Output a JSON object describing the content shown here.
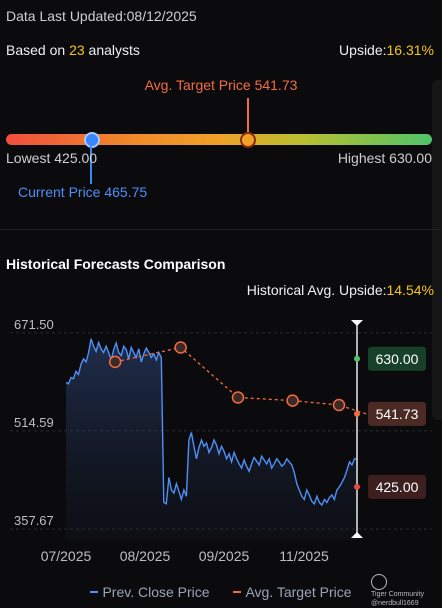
{
  "header": {
    "updated_label": "Data Last Updated:",
    "updated_date": "08/12/2025",
    "based_on_prefix": "Based on",
    "analyst_count": "23",
    "based_on_suffix": "analysts",
    "upside_label": "Upside:",
    "upside_value": "16.31%"
  },
  "price_range": {
    "avg_target_label": "Avg. Target Price 541.73",
    "lowest_label": "Lowest 425.00",
    "highest_label": "Highest 630.00",
    "current_label": "Current Price 465.75",
    "lowest": 425.0,
    "highest": 630.0,
    "current": 465.75,
    "avg_target": 541.73,
    "colors": {
      "current": "#3a86ff",
      "target": "#f26b43"
    }
  },
  "historical": {
    "title": "Historical Forecasts Comparison",
    "upside_label": "Historical Avg. Upside:",
    "upside_value": "14.54%"
  },
  "chart_data": {
    "type": "line",
    "y_ticks": [
      "671.50",
      "514.59",
      "357.67"
    ],
    "ylim": [
      340,
      700
    ],
    "x_ticks": [
      "07/2025",
      "08/2025",
      "09/2025",
      "11/2025"
    ],
    "series": [
      {
        "name": "Prev. Close Price",
        "color": "#4f8ff7",
        "values": [
          592,
          590,
          600,
          598,
          610,
          605,
          622,
          630,
          625,
          640,
          662,
          650,
          642,
          656,
          646,
          640,
          650,
          640,
          628,
          645,
          655,
          640,
          635,
          650,
          645,
          630,
          648,
          640,
          632,
          646,
          625,
          638,
          647,
          640,
          632,
          638,
          628,
          640,
          632,
          400,
          398,
          440,
          420,
          415,
          430,
          418,
          405,
          420,
          410,
          500,
          512,
          490,
          470,
          488,
          500,
          490,
          495,
          480,
          488,
          500,
          492,
          478,
          490,
          482,
          470,
          478,
          465,
          480,
          470,
          462,
          455,
          468,
          458,
          450,
          462,
          472,
          466,
          460,
          474,
          468,
          462,
          470,
          455,
          462,
          470,
          465,
          458,
          462,
          470,
          465,
          460,
          448,
          430,
          420,
          410,
          405,
          420,
          412,
          402,
          398,
          410,
          400,
          396,
          405,
          400,
          408,
          412,
          405,
          420,
          425,
          432,
          440,
          452,
          465,
          460,
          470,
          470
        ]
      },
      {
        "name": "Avg. Target Price",
        "color": "#f26b43",
        "points": [
          [
            0.18,
            625
          ],
          [
            0.42,
            648
          ],
          [
            0.63,
            568
          ],
          [
            0.83,
            563
          ],
          [
            1.0,
            556
          ],
          [
            1.1,
            541.73
          ]
        ]
      }
    ],
    "annotations": [
      {
        "label": "630.00",
        "value": 630.0,
        "color": "#4fc36a"
      },
      {
        "label": "541.73",
        "value": 541.73,
        "color": "#f26b43"
      },
      {
        "label": "425.00",
        "value": 425.0,
        "color": "#e84a4a"
      }
    ]
  },
  "legend": {
    "close_label": "Prev. Close Price",
    "target_label": "Avg. Target Price"
  },
  "watermark": {
    "line1": "Tiger Community",
    "line2": "@nerdbull1669"
  }
}
